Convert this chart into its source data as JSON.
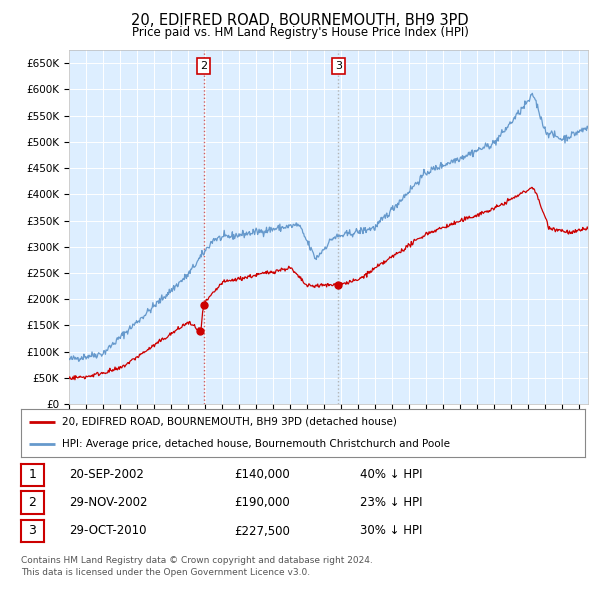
{
  "title": "20, EDIFRED ROAD, BOURNEMOUTH, BH9 3PD",
  "subtitle": "Price paid vs. HM Land Registry's House Price Index (HPI)",
  "legend_house": "20, EDIFRED ROAD, BOURNEMOUTH, BH9 3PD (detached house)",
  "legend_hpi": "HPI: Average price, detached house, Bournemouth Christchurch and Poole",
  "footnote1": "Contains HM Land Registry data © Crown copyright and database right 2024.",
  "footnote2": "This data is licensed under the Open Government Licence v3.0.",
  "sales": [
    {
      "label": "1",
      "date": "20-SEP-2002",
      "price": "£140,000",
      "note": "40% ↓ HPI",
      "date_num": 2002.72,
      "price_val": 140000
    },
    {
      "label": "2",
      "date": "29-NOV-2002",
      "price": "£190,000",
      "note": "23% ↓ HPI",
      "date_num": 2002.91,
      "price_val": 190000
    },
    {
      "label": "3",
      "date": "29-OCT-2010",
      "price": "£227,500",
      "note": "30% ↓ HPI",
      "date_num": 2010.83,
      "price_val": 227500
    }
  ],
  "vline2_date": 2002.91,
  "vline3_date": 2010.83,
  "hpi_color": "#6699cc",
  "house_color": "#cc0000",
  "plot_bg": "#ddeeff",
  "grid_color": "#ffffff",
  "ylim": [
    0,
    675000
  ],
  "xlim_start": 1995.0,
  "xlim_end": 2025.5
}
